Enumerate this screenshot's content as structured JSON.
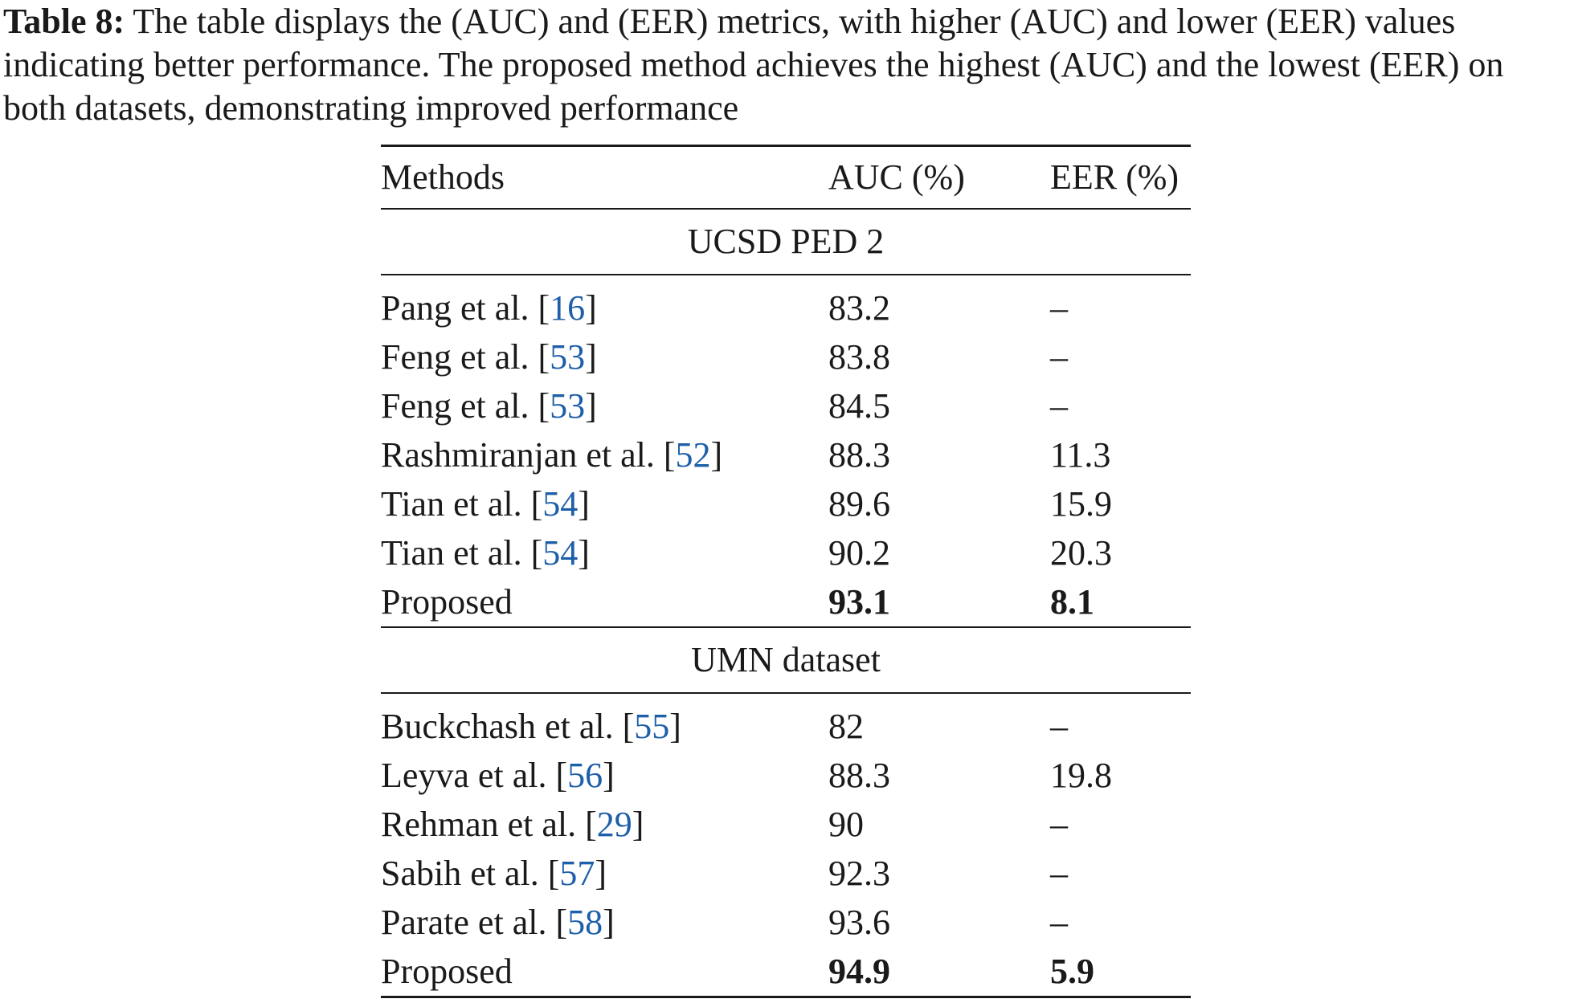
{
  "caption": {
    "label": "Table 8:",
    "text": "The table displays the (AUC) and (EER) metrics, with higher (AUC) and lower (EER) values indicating better performance. The proposed method achieves the highest (AUC) and the lowest (EER) on both datasets, demonstrating improved performance"
  },
  "table": {
    "headers": [
      "Methods",
      "AUC (%)",
      "EER (%)"
    ],
    "sections": [
      {
        "title": "UCSD PED 2",
        "rows": [
          {
            "method": "Pang et al. [",
            "ref": "16",
            "close": "]",
            "auc": "83.2",
            "eer": "–"
          },
          {
            "method": "Feng et al. [",
            "ref": "53",
            "close": "]",
            "auc": "83.8",
            "eer": "–"
          },
          {
            "method": "Feng et al. [",
            "ref": "53",
            "close": "]",
            "auc": "84.5",
            "eer": "–"
          },
          {
            "method": "Rashmiranjan et al. [",
            "ref": "52",
            "close": "]",
            "auc": "88.3",
            "eer": "11.3"
          },
          {
            "method": "Tian et al. [",
            "ref": "54",
            "close": "]",
            "auc": "89.6",
            "eer": "15.9"
          },
          {
            "method": "Tian et al. [",
            "ref": "54",
            "close": "]",
            "auc": "90.2",
            "eer": "20.3"
          },
          {
            "method": "Proposed",
            "ref": "",
            "close": "",
            "auc": "93.1",
            "eer": "8.1"
          }
        ]
      },
      {
        "title": "UMN dataset",
        "rows": [
          {
            "method": "Buckchash et al. [",
            "ref": "55",
            "close": "]",
            "auc": "82",
            "eer": "–"
          },
          {
            "method": "Leyva et al. [",
            "ref": "56",
            "close": "]",
            "auc": "88.3",
            "eer": "19.8"
          },
          {
            "method": "Rehman et al. [",
            "ref": "29",
            "close": "]",
            "auc": "90",
            "eer": "–"
          },
          {
            "method": "Sabih et al. [",
            "ref": "57",
            "close": "]",
            "auc": "92.3",
            "eer": "–"
          },
          {
            "method": "Parate et al. [",
            "ref": "58",
            "close": "]",
            "auc": "93.6",
            "eer": "–"
          },
          {
            "method": "Proposed",
            "ref": "",
            "close": "",
            "auc": "94.9",
            "eer": "5.9"
          }
        ]
      }
    ]
  }
}
